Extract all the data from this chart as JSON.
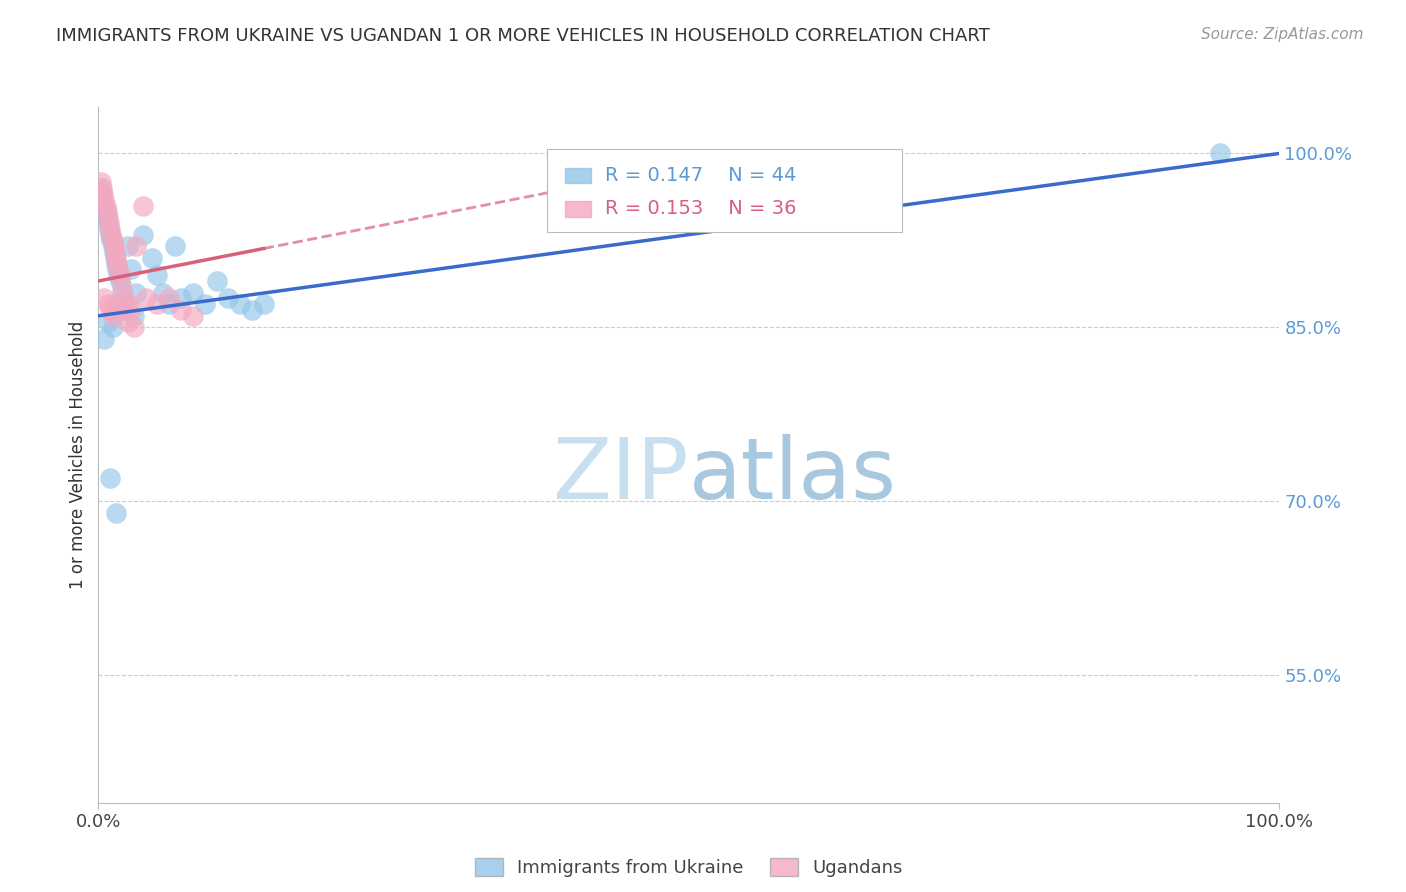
{
  "title": "IMMIGRANTS FROM UKRAINE VS UGANDAN 1 OR MORE VEHICLES IN HOUSEHOLD CORRELATION CHART",
  "source": "Source: ZipAtlas.com",
  "ylabel": "1 or more Vehicles in Household",
  "xlim": [
    0.0,
    1.0
  ],
  "ylim": [
    0.44,
    1.04
  ],
  "yticks": [
    0.55,
    0.7,
    0.85,
    1.0
  ],
  "ytick_labels": [
    "55.0%",
    "70.0%",
    "85.0%",
    "100.0%"
  ],
  "ukraine_x": [
    0.002,
    0.003,
    0.004,
    0.005,
    0.006,
    0.007,
    0.008,
    0.009,
    0.01,
    0.011,
    0.012,
    0.013,
    0.014,
    0.015,
    0.016,
    0.017,
    0.018,
    0.02,
    0.022,
    0.025,
    0.028,
    0.032,
    0.038,
    0.045,
    0.05,
    0.055,
    0.06,
    0.065,
    0.07,
    0.08,
    0.09,
    0.1,
    0.11,
    0.12,
    0.13,
    0.14,
    0.03,
    0.02,
    0.012,
    0.008,
    0.005,
    0.01,
    0.015,
    0.95
  ],
  "ukraine_y": [
    0.97,
    0.965,
    0.96,
    0.955,
    0.95,
    0.945,
    0.94,
    0.935,
    0.93,
    0.925,
    0.92,
    0.915,
    0.91,
    0.905,
    0.9,
    0.895,
    0.89,
    0.88,
    0.87,
    0.92,
    0.9,
    0.88,
    0.93,
    0.91,
    0.895,
    0.88,
    0.87,
    0.92,
    0.875,
    0.88,
    0.87,
    0.89,
    0.875,
    0.87,
    0.865,
    0.87,
    0.86,
    0.865,
    0.85,
    0.855,
    0.84,
    0.72,
    0.69,
    1.0
  ],
  "ugandan_x": [
    0.002,
    0.003,
    0.004,
    0.005,
    0.006,
    0.007,
    0.008,
    0.009,
    0.01,
    0.011,
    0.012,
    0.013,
    0.014,
    0.015,
    0.016,
    0.017,
    0.018,
    0.02,
    0.022,
    0.025,
    0.028,
    0.032,
    0.038,
    0.005,
    0.008,
    0.01,
    0.012,
    0.04,
    0.05,
    0.06,
    0.07,
    0.08,
    0.03,
    0.025,
    0.015,
    0.02
  ],
  "ugandan_y": [
    0.975,
    0.97,
    0.965,
    0.96,
    0.955,
    0.95,
    0.945,
    0.94,
    0.935,
    0.93,
    0.925,
    0.92,
    0.915,
    0.91,
    0.905,
    0.9,
    0.895,
    0.885,
    0.875,
    0.87,
    0.865,
    0.92,
    0.955,
    0.875,
    0.87,
    0.865,
    0.86,
    0.875,
    0.87,
    0.875,
    0.865,
    0.86,
    0.85,
    0.855,
    0.87,
    0.865
  ],
  "ukraine_R": 0.147,
  "ukraine_N": 44,
  "ugandan_R": 0.153,
  "ugandan_N": 36,
  "ukraine_color": "#92c5e8",
  "ugandan_color": "#f4a8c0",
  "ukraine_line_color": "#3a6bcc",
  "ugandan_line_color": "#d95f7a",
  "ukraine_line_y0": 0.86,
  "ukraine_line_y1": 1.0,
  "ugandan_line_x0": 0.0,
  "ugandan_line_x1": 0.45,
  "ugandan_line_y0": 0.89,
  "ugandan_line_y1": 0.98,
  "watermark_zip": "ZIP",
  "watermark_atlas": "atlas",
  "legend_ukraine": "Immigrants from Ukraine",
  "legend_ugandan": "Ugandans",
  "background_color": "#ffffff",
  "grid_color": "#cccccc"
}
